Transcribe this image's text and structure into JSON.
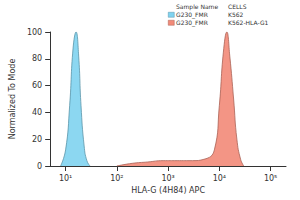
{
  "chart_data": {
    "type": "histogram",
    "x_label": "HLA-G (4H84) APC",
    "y_label": "Normalized To Mode",
    "log": "x",
    "xlim": [
      5,
      200000
    ],
    "xticks": [
      {
        "value": 10,
        "label": "10¹"
      },
      {
        "value": 100,
        "label": "10²"
      },
      {
        "value": 1000,
        "label": "10³"
      },
      {
        "value": 10000,
        "label": "10⁴"
      },
      {
        "value": 100000,
        "label": "10⁵"
      }
    ],
    "ylim": [
      0,
      100
    ],
    "yticks": [
      0,
      20,
      40,
      60,
      80,
      100
    ],
    "series": [
      {
        "color": "#7fd3f0",
        "x": [
          8,
          10,
          12,
          14,
          16,
          18,
          20,
          23,
          26,
          30
        ],
        "values": [
          0,
          12,
          45,
          88,
          100,
          82,
          45,
          15,
          4,
          0
        ]
      },
      {
        "color": "#f28a78",
        "x": [
          100,
          200,
          400,
          800,
          1500,
          3000,
          5000,
          8000,
          10000,
          12000,
          14000,
          16000,
          19000,
          22000,
          26000,
          30000
        ],
        "values": [
          0,
          2,
          3,
          4,
          4,
          4,
          5,
          12,
          45,
          85,
          100,
          82,
          50,
          20,
          5,
          0
        ]
      }
    ]
  },
  "legend_table": {
    "header": [
      "Sample Name",
      "CELLS"
    ],
    "rows": [
      [
        "G230_FMR",
        "K562"
      ],
      [
        "G230_FMR",
        "K562-HLA-G1"
      ]
    ]
  }
}
